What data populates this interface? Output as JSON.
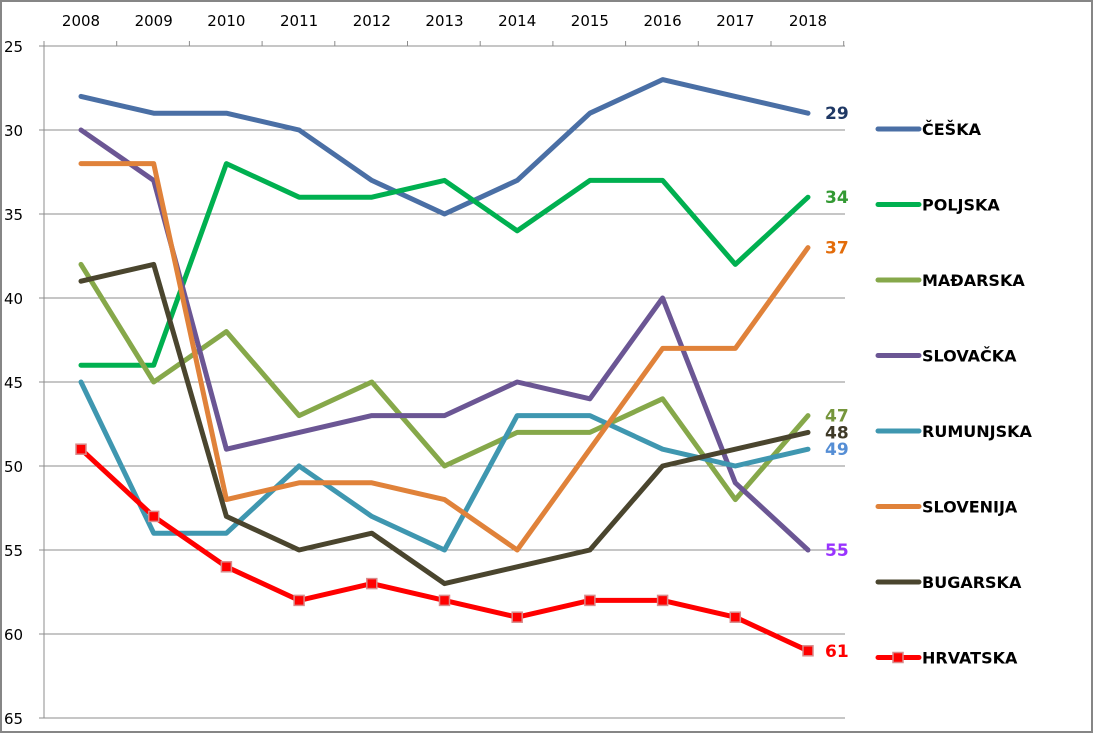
{
  "chart_data": {
    "type": "line",
    "title": "",
    "xlabel": "",
    "ylabel": "",
    "x": [
      "2008",
      "2009",
      "2010",
      "2011",
      "2012",
      "2013",
      "2014",
      "2015",
      "2016",
      "2017",
      "2018"
    ],
    "ylim": [
      25,
      65
    ],
    "y_inverted": true,
    "y_ticks": [
      25,
      30,
      35,
      40,
      45,
      50,
      55,
      60,
      65
    ],
    "x_axis_position": "top",
    "grid": true,
    "legend_position": "right",
    "series": [
      {
        "name": "ČEŠKA",
        "color": "#4A6FA5",
        "values": [
          28,
          29,
          29,
          30,
          33,
          35,
          33,
          29,
          27,
          28,
          29
        ],
        "end_label": "29",
        "end_label_color": "#1F3864",
        "marker": "none"
      },
      {
        "name": "POLJSKA",
        "color": "#00B050",
        "values": [
          44,
          44,
          32,
          34,
          34,
          33,
          36,
          33,
          33,
          38,
          34
        ],
        "end_label": "34",
        "end_label_color": "#339933",
        "marker": "none"
      },
      {
        "name": "MAĐARSKA",
        "color": "#86A84A",
        "values": [
          38,
          45,
          42,
          47,
          45,
          50,
          48,
          48,
          46,
          52,
          47
        ],
        "end_label": "47",
        "end_label_color": "#76963C",
        "marker": "none"
      },
      {
        "name": "SLOVAČKA",
        "color": "#6B5694",
        "values": [
          30,
          33,
          49,
          48,
          47,
          47,
          45,
          46,
          40,
          51,
          55
        ],
        "end_label": "55",
        "end_label_color": "#9933FF",
        "marker": "none"
      },
      {
        "name": "RUMUNJSKA",
        "color": "#3F97B0",
        "values": [
          45,
          54,
          54,
          50,
          53,
          55,
          47,
          47,
          49,
          50,
          49
        ],
        "end_label": "49",
        "end_label_color": "#558ED5",
        "marker": "none"
      },
      {
        "name": "SLOVENIJA",
        "color": "#E0823A",
        "values": [
          32,
          32,
          52,
          51,
          51,
          52,
          55,
          49,
          43,
          43,
          37
        ],
        "end_label": "37",
        "end_label_color": "#E36C0A",
        "marker": "none"
      },
      {
        "name": "BUGARSKA",
        "color": "#4A452E",
        "values": [
          39,
          38,
          53,
          55,
          54,
          57,
          56,
          55,
          50,
          49,
          48
        ],
        "end_label": "48",
        "end_label_color": "#3F3A28",
        "marker": "none"
      },
      {
        "name": "HRVATSKA",
        "color": "#FF0000",
        "values": [
          49,
          53,
          56,
          58,
          57,
          58,
          59,
          58,
          58,
          59,
          61
        ],
        "end_label": "61",
        "end_label_color": "#FF0000",
        "marker": "square"
      }
    ]
  }
}
